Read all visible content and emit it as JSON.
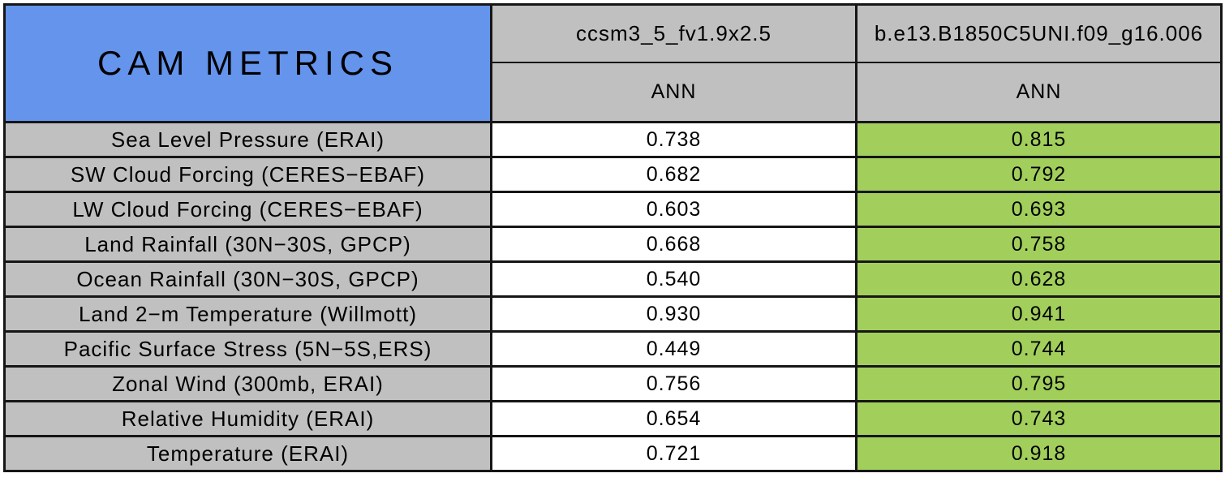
{
  "table": {
    "title": "CAM METRICS",
    "columns": [
      {
        "model": "ccsm3_5_fv1.9x2.5",
        "season": "ANN"
      },
      {
        "model": "b.e13.B1850C5UNI.f09_g16.006",
        "season": "ANN"
      }
    ],
    "rows": [
      {
        "metric": "Sea Level Pressure (ERAI)",
        "values": [
          "0.738",
          "0.815"
        ]
      },
      {
        "metric": "SW Cloud Forcing (CERES−EBAF)",
        "values": [
          "0.682",
          "0.792"
        ]
      },
      {
        "metric": "LW Cloud Forcing (CERES−EBAF)",
        "values": [
          "0.603",
          "0.693"
        ]
      },
      {
        "metric": "Land Rainfall (30N−30S, GPCP)",
        "values": [
          "0.668",
          "0.758"
        ]
      },
      {
        "metric": "Ocean Rainfall (30N−30S, GPCP)",
        "values": [
          "0.540",
          "0.628"
        ]
      },
      {
        "metric": "Land 2−m Temperature (Willmott)",
        "values": [
          "0.930",
          "0.941"
        ]
      },
      {
        "metric": "Pacific Surface Stress (5N−5S,ERS)",
        "values": [
          "0.449",
          "0.744"
        ]
      },
      {
        "metric": "Zonal Wind (300mb, ERAI)",
        "values": [
          "0.756",
          "0.795"
        ]
      },
      {
        "metric": "Relative Humidity (ERAI)",
        "values": [
          "0.654",
          "0.743"
        ]
      },
      {
        "metric": "Temperature (ERAI)",
        "values": [
          "0.721",
          "0.918"
        ]
      }
    ],
    "colors": {
      "blue": "#6494ec",
      "gray": "#c0c0c0",
      "green": "#a2cf5c",
      "border": "#161616"
    }
  },
  "chart_data": {
    "type": "table",
    "title": "CAM METRICS",
    "column_groups": [
      "ccsm3_5_fv1.9x2.5",
      "b.e13.B1850C5UNI.f09_g16.006"
    ],
    "subheaders": [
      "ANN",
      "ANN"
    ],
    "row_labels": [
      "Sea Level Pressure (ERAI)",
      "SW Cloud Forcing (CERES−EBAF)",
      "LW Cloud Forcing (CERES−EBAF)",
      "Land Rainfall (30N−30S, GPCP)",
      "Ocean Rainfall (30N−30S, GPCP)",
      "Land 2−m Temperature (Willmott)",
      "Pacific Surface Stress (5N−5S,ERS)",
      "Zonal Wind (300mb, ERAI)",
      "Relative Humidity (ERAI)",
      "Temperature (ERAI)"
    ],
    "series": [
      {
        "name": "ccsm3_5_fv1.9x2.5",
        "values": [
          0.738,
          0.682,
          0.603,
          0.668,
          0.54,
          0.93,
          0.449,
          0.756,
          0.654,
          0.721
        ]
      },
      {
        "name": "b.e13.B1850C5UNI.f09_g16.006",
        "values": [
          0.815,
          0.792,
          0.693,
          0.758,
          0.628,
          0.941,
          0.744,
          0.795,
          0.743,
          0.918
        ]
      }
    ],
    "layout_hints": {
      "title_cell_color": "blue",
      "header_cell_color": "gray",
      "first_series_cell_color": "white",
      "second_series_cell_color": "green (highlighted)"
    }
  }
}
